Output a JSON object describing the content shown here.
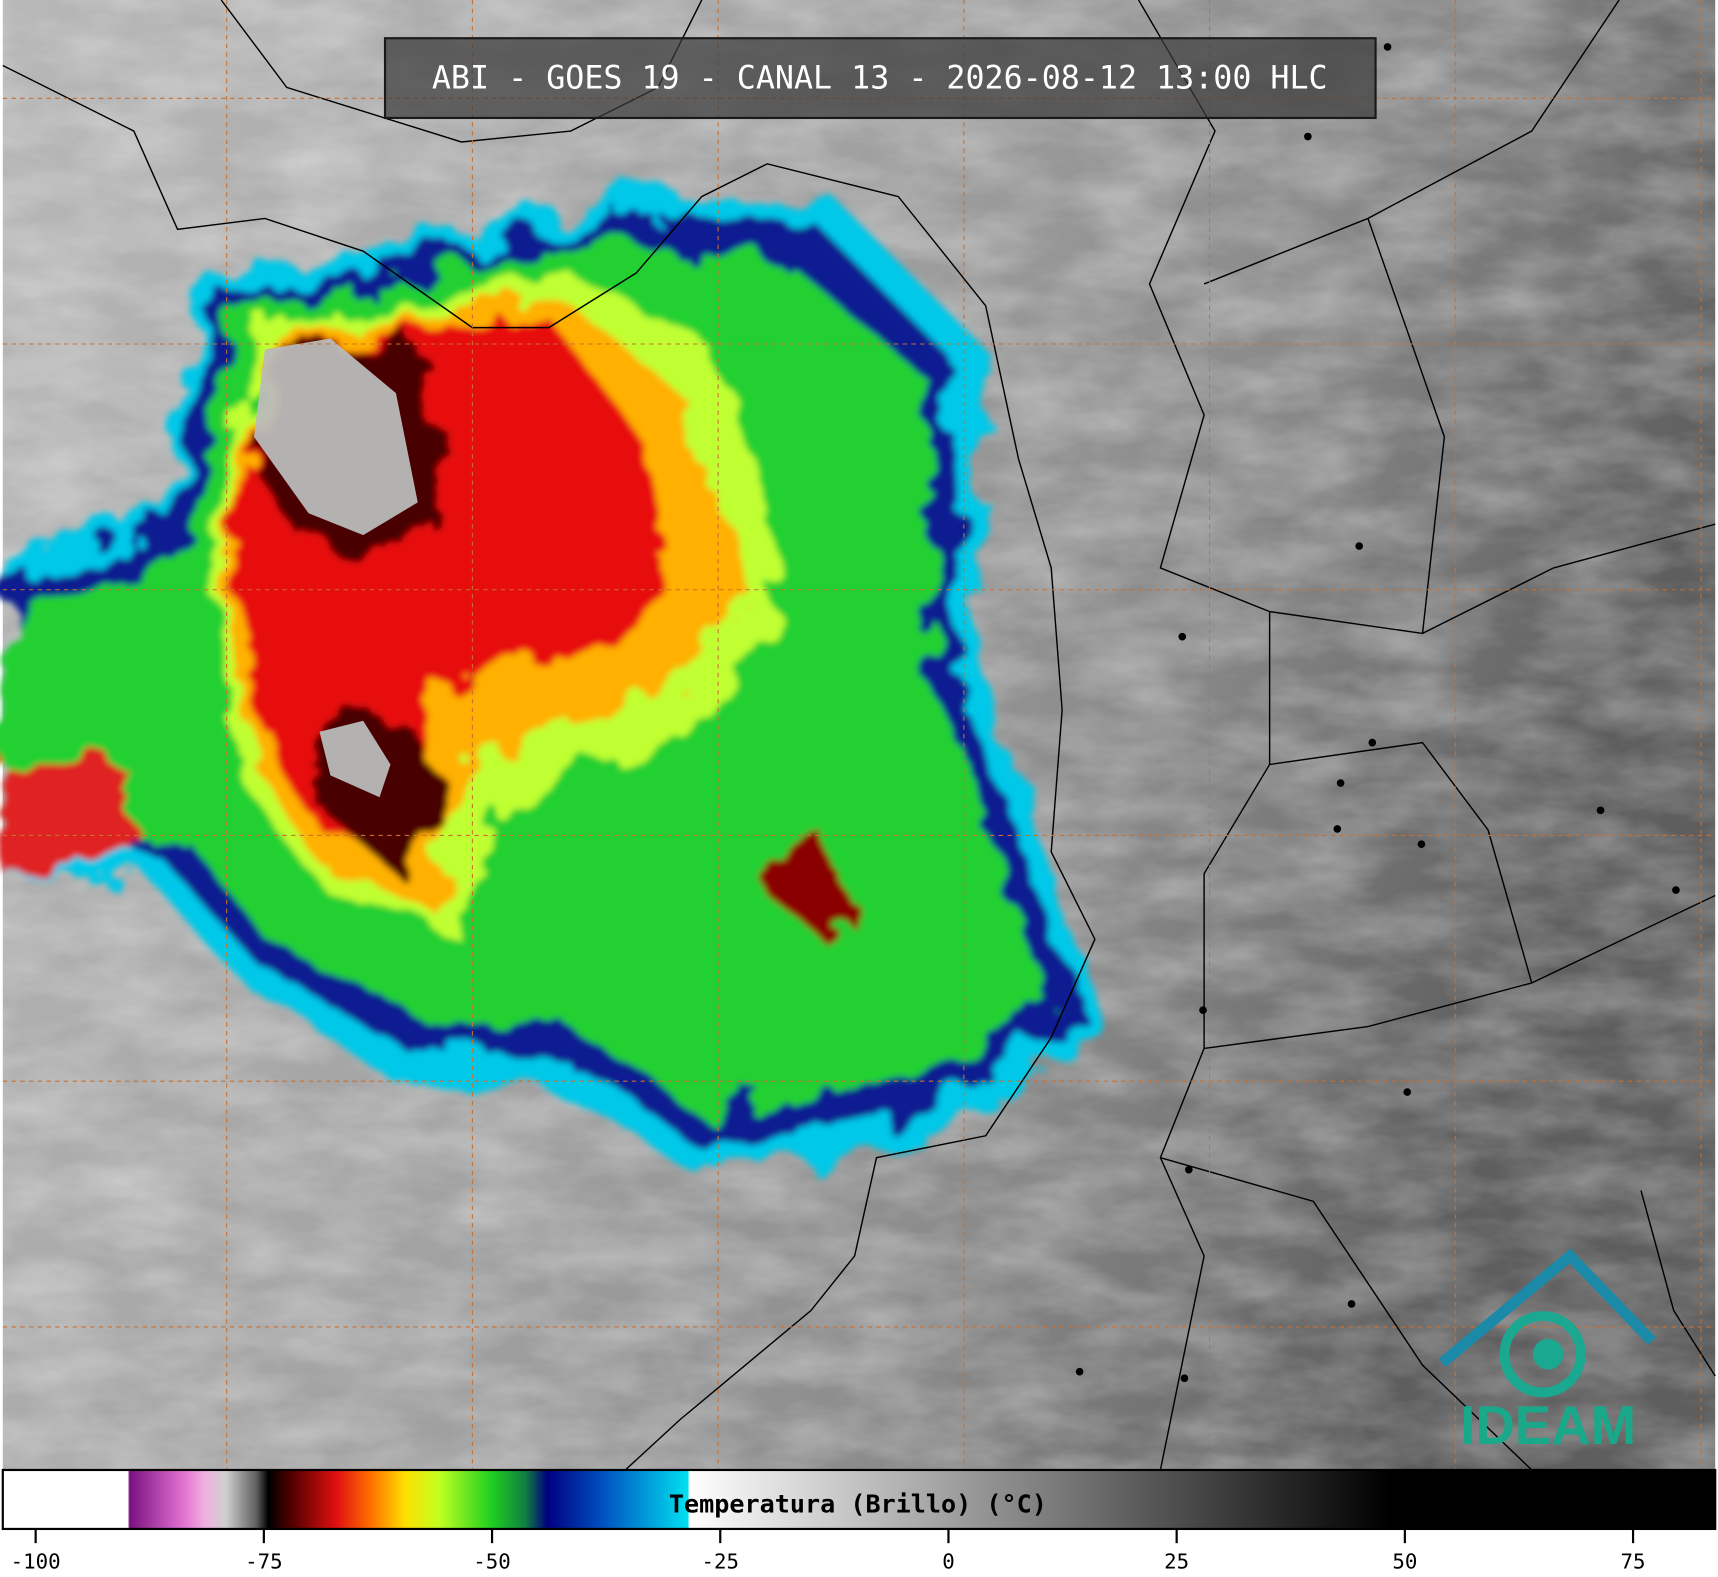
{
  "title": "ABI - GOES 19 - CANAL 13 - 2026-08-12 13:00 HLC",
  "logo": "IDEAM",
  "colorbar": {
    "label": "Temperatura (Brillo) (°C)",
    "xlim": [
      -103.6,
      84
    ],
    "xticks": [
      -100,
      -75,
      -50,
      -25,
      0,
      25,
      50,
      75
    ]
  }
}
